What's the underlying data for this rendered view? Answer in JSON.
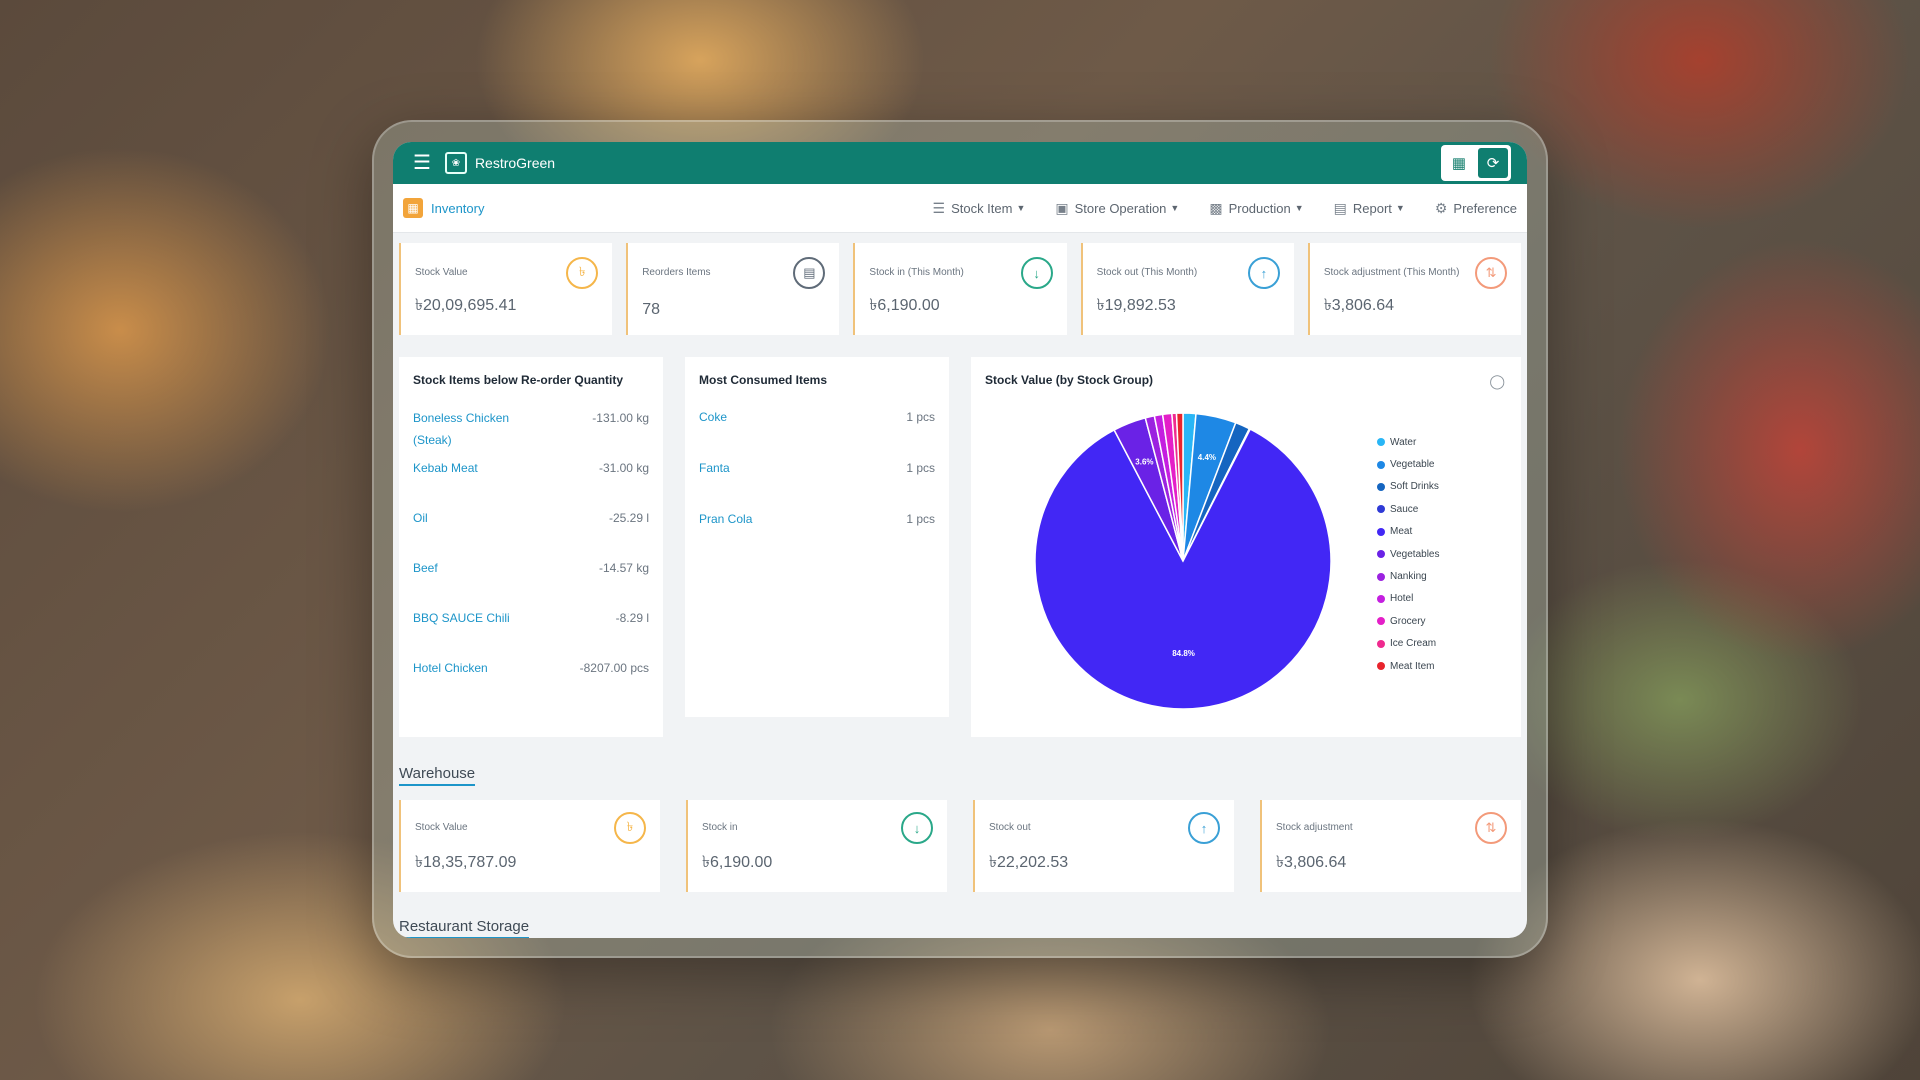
{
  "app": {
    "name": "RestroGreen"
  },
  "module": {
    "name": "Inventory"
  },
  "nav": [
    {
      "label": "Stock Item",
      "icon": "list-icon"
    },
    {
      "label": "Store Operation",
      "icon": "store-icon"
    },
    {
      "label": "Production",
      "icon": "factory-icon"
    },
    {
      "label": "Report",
      "icon": "report-icon"
    },
    {
      "label": "Preference",
      "icon": "gear-icon"
    }
  ],
  "kpis": [
    {
      "label": "Stock Value",
      "value": "৳20,09,695.41",
      "color": "#f5b64a"
    },
    {
      "label": "Reorders Items",
      "value": "78",
      "color": "#5f6b78"
    },
    {
      "label": "Stock in (This Month)",
      "value": "৳6,190.00",
      "color": "#2aa889"
    },
    {
      "label": "Stock out (This Month)",
      "value": "৳19,892.53",
      "color": "#3aa0d6"
    },
    {
      "label": "Stock adjustment (This Month)",
      "value": "৳3,806.64",
      "color": "#f39a7a"
    }
  ],
  "reorder": {
    "title": "Stock Items below Re-order Quantity",
    "items": [
      {
        "name": "Boneless Chicken (Steak)",
        "qty": "-131.00 kg"
      },
      {
        "name": "Kebab Meat",
        "qty": "-31.00 kg"
      },
      {
        "name": "Oil",
        "qty": "-25.29 l"
      },
      {
        "name": "Beef",
        "qty": "-14.57 kg"
      },
      {
        "name": "BBQ SAUCE Chili",
        "qty": "-8.29 l"
      },
      {
        "name": "Hotel Chicken",
        "qty": "-8207.00 pcs"
      }
    ]
  },
  "consumed": {
    "title": "Most Consumed Items",
    "items": [
      {
        "name": "Coke",
        "qty": "1 pcs"
      },
      {
        "name": "Fanta",
        "qty": "1 pcs"
      },
      {
        "name": "Pran Cola",
        "qty": "1 pcs"
      }
    ]
  },
  "pie": {
    "title": "Stock Value (by Stock Group)",
    "options_icon": "chat-icon"
  },
  "chart_data": {
    "type": "pie",
    "title": "Stock Value (by Stock Group)",
    "series": [
      {
        "name": "Water",
        "value": 1.4,
        "color": "#29b6f6",
        "label": ""
      },
      {
        "name": "Vegetable",
        "value": 4.4,
        "color": "#1e88e5",
        "label": "4.4%"
      },
      {
        "name": "Soft Drinks",
        "value": 1.6,
        "color": "#1565c0",
        "label": ""
      },
      {
        "name": "Sauce",
        "value": 0.1,
        "color": "#2f3ad6",
        "label": ""
      },
      {
        "name": "Meat",
        "value": 84.8,
        "color": "#4227f5",
        "label": "84.8%"
      },
      {
        "name": "Vegetables",
        "value": 3.6,
        "color": "#6a22e6",
        "label": "3.6%"
      },
      {
        "name": "Nanking",
        "value": 1.0,
        "color": "#9b22e0",
        "label": ""
      },
      {
        "name": "Hotel",
        "value": 0.9,
        "color": "#c41fe0",
        "label": ""
      },
      {
        "name": "Grocery",
        "value": 1.0,
        "color": "#e41fc8",
        "label": ""
      },
      {
        "name": "Ice Cream",
        "value": 0.5,
        "color": "#ef2a8f",
        "label": ""
      },
      {
        "name": "Meat Item",
        "value": 0.7,
        "color": "#e8242d",
        "label": ""
      }
    ]
  },
  "warehouse": {
    "title": "Warehouse",
    "cards": [
      {
        "label": "Stock Value",
        "value": "৳18,35,787.09",
        "color": "#f5b64a"
      },
      {
        "label": "Stock in",
        "value": "৳6,190.00",
        "color": "#2aa889"
      },
      {
        "label": "Stock out",
        "value": "৳22,202.53",
        "color": "#3aa0d6"
      },
      {
        "label": "Stock adjustment",
        "value": "৳3,806.64",
        "color": "#f39a7a"
      }
    ]
  },
  "restaurant_storage": {
    "title": "Restaurant Storage"
  }
}
